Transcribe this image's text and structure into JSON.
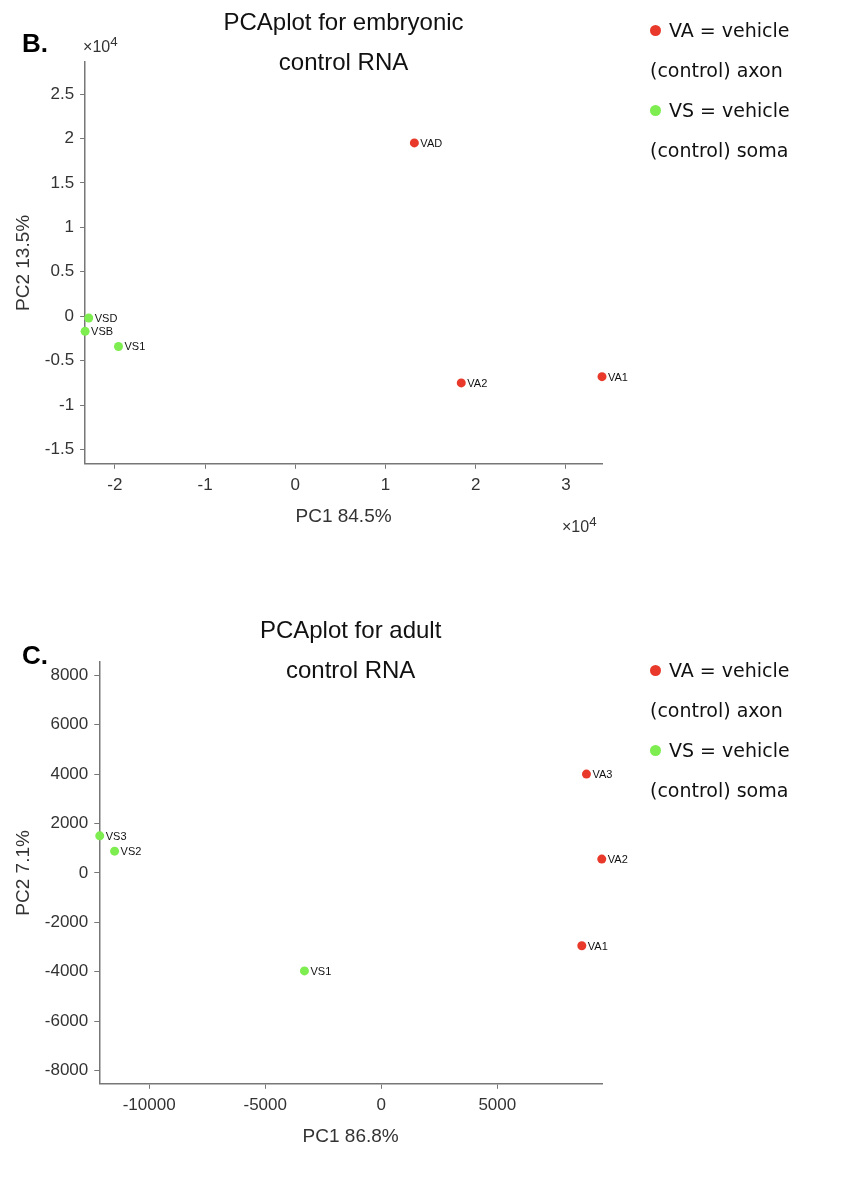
{
  "chart_data": [
    {
      "type": "scatter",
      "title": "PCAplot for embryonic control RNA",
      "xlabel": "PC1 84.5%",
      "ylabel": "PC2 13.5%",
      "xlim": [
        -2.33,
        3.4
      ],
      "ylim": [
        -1.66,
        2.86
      ],
      "xticks": [
        -2,
        -1,
        0,
        1,
        2,
        3
      ],
      "yticks": [
        -1.5,
        -1,
        -0.5,
        0,
        0.5,
        1,
        1.5,
        2,
        2.5
      ],
      "grid": false,
      "legend": "right",
      "marker": "circle",
      "series": [
        {
          "name": "VA = vehicle (control) axon",
          "color": "#e8392b",
          "x": [
            1.32,
            1.84,
            3.4
          ],
          "values": [
            1.95,
            -0.75,
            -0.68
          ]
        },
        {
          "name": "VS = vehicle (control) soma",
          "color": "#7ded4f",
          "x": [
            -2.29,
            -2.33,
            -1.96
          ],
          "values": [
            -0.02,
            -0.17,
            -0.34
          ]
        }
      ],
      "annotations": [
        "B.",
        "×10$^{4}$",
        "×10$^{4}$",
        {
          "text": "VAD",
          "x": 1.32,
          "y": 1.95
        },
        {
          "text": "VA2",
          "x": 1.84,
          "y": -0.75
        },
        {
          "text": "VA1",
          "x": 3.4,
          "y": -0.68
        },
        {
          "text": "VSD",
          "x": -2.29,
          "y": -0.02
        },
        {
          "text": "VSB",
          "x": -2.33,
          "y": -0.17
        },
        {
          "text": "VS1",
          "x": -1.96,
          "y": -0.34
        }
      ]
    },
    {
      "type": "scatter",
      "title": "PCAplot for adult control RNA",
      "xlabel": "PC1 86.8%",
      "ylabel": "PC2 7.1%",
      "xlim": [
        -12150,
        9510
      ],
      "ylim": [
        -8540,
        8540
      ],
      "xticks": [
        -10000,
        -5000,
        0,
        5000
      ],
      "yticks": [
        -8000,
        -6000,
        -4000,
        -2000,
        0,
        2000,
        4000,
        6000,
        8000
      ],
      "grid": false,
      "legend": "right",
      "marker": "circle",
      "series": [
        {
          "name": "VA = vehicle (control) axon",
          "color": "#e8392b",
          "x": [
            8840,
            9500,
            8640
          ],
          "values": [
            4000,
            560,
            -2950
          ]
        },
        {
          "name": "VS = vehicle (control) soma",
          "color": "#7ded4f",
          "x": [
            -12130,
            -11490,
            -3310
          ],
          "values": [
            1500,
            880,
            -3970
          ]
        }
      ],
      "annotations": [
        "C.",
        {
          "text": "VA3",
          "x": 8840,
          "y": 4000
        },
        {
          "text": "VA2",
          "x": 9500,
          "y": 560
        },
        {
          "text": "VA1",
          "x": 8640,
          "y": -2950
        },
        {
          "text": "VS3",
          "x": -12130,
          "y": 1500
        },
        {
          "text": "VS2",
          "x": -11490,
          "y": 880
        },
        {
          "text": "VS1",
          "x": -3310,
          "y": -3970
        }
      ]
    }
  ]
}
